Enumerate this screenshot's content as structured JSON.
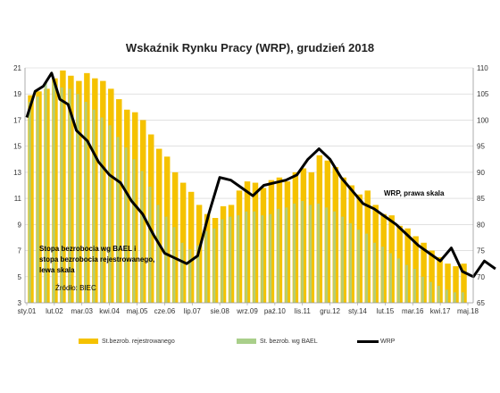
{
  "chart_data": {
    "type": "bar+line",
    "title": "Wskaźnik Rynku Pracy (WRP), grudzień 2018",
    "left_axis": {
      "range": [
        3,
        21
      ],
      "ticks": [
        3,
        5,
        7,
        9,
        11,
        13,
        15,
        17,
        19,
        21
      ]
    },
    "right_axis": {
      "range": [
        65,
        110
      ],
      "ticks": [
        65,
        70,
        75,
        80,
        85,
        90,
        95,
        100,
        105,
        110
      ]
    },
    "x_tick_labels": [
      "sty.01",
      "lut.02",
      "mar.03",
      "kwi.04",
      "maj.05",
      "cze.06",
      "lip.07",
      "sie.08",
      "wrz.09",
      "paź.10",
      "lis.11",
      "gru.12",
      "sty.14",
      "lut.15",
      "mar.16",
      "kwi.17",
      "maj.18"
    ],
    "grid": "horizontal",
    "series": [
      {
        "name": "St.bezrob. rejestrowanego",
        "type": "bar",
        "axis": "left",
        "color": "#F5C200",
        "values": [
          18.9,
          19.2,
          19.4,
          20.2,
          20.8,
          20.4,
          20.0,
          20.6,
          20.2,
          20.0,
          19.4,
          18.6,
          17.8,
          17.6,
          17.0,
          15.9,
          14.8,
          14.2,
          13.0,
          12.2,
          11.5,
          10.5,
          9.8,
          9.5,
          10.4,
          10.5,
          11.6,
          12.3,
          12.2,
          11.8,
          12.4,
          12.6,
          12.3,
          13.0,
          13.3,
          13.0,
          14.3,
          13.9,
          13.4,
          12.6,
          12.0,
          11.3,
          11.6,
          10.5,
          9.8,
          9.7,
          8.9,
          8.7,
          8.1,
          7.6,
          7.0,
          6.5,
          6.0,
          5.8,
          6.0
        ]
      },
      {
        "name": "St. bezrob. wg BAEL",
        "type": "bar",
        "axis": "left",
        "color": "#A9CF8A",
        "values": [
          18.4,
          18.8,
          19.9,
          20.2,
          19.5,
          19.4,
          19.0,
          18.4,
          17.8,
          17.2,
          16.6,
          15.7,
          14.9,
          14.0,
          13.1,
          11.9,
          10.5,
          9.6,
          8.8,
          7.6,
          7.1,
          7.4,
          8.5,
          8.7,
          9.4,
          9.6,
          9.7,
          10.0,
          10.0,
          9.7,
          9.8,
          10.2,
          10.3,
          10.6,
          10.8,
          10.5,
          10.6,
          10.3,
          10.0,
          9.6,
          9.1,
          8.6,
          8.3,
          7.6,
          7.3,
          6.8,
          6.4,
          5.9,
          5.6,
          5.0,
          4.6,
          4.3,
          4.0,
          3.8,
          3.8
        ]
      },
      {
        "name": "WRP",
        "type": "line",
        "axis": "right",
        "color": "#000000",
        "x": [
          0,
          0.3,
          0.6,
          0.9,
          1.2,
          1.5,
          1.8,
          2.2,
          2.6,
          3.0,
          3.4,
          3.8,
          4.2,
          4.6,
          5.0,
          5.4,
          5.8,
          6.2,
          6.6,
          7.0,
          7.4,
          7.8,
          8.2,
          8.6,
          9.0,
          9.4,
          9.8,
          10.2,
          10.6,
          11.0,
          11.4,
          11.8,
          12.2,
          12.6,
          13.0,
          13.4,
          13.8,
          14.2,
          14.6,
          15.0,
          15.4,
          15.8,
          16.2,
          16.6,
          17.0
        ],
        "values": [
          100.5,
          105.5,
          106.5,
          109.0,
          104.0,
          103.0,
          98.0,
          96.0,
          92.0,
          89.5,
          88.0,
          84.5,
          82.0,
          78.0,
          74.5,
          73.5,
          72.5,
          74.0,
          82.0,
          89.0,
          88.5,
          87.0,
          85.5,
          87.5,
          88.0,
          88.5,
          89.5,
          92.5,
          94.5,
          92.5,
          89.0,
          86.5,
          84.0,
          83.0,
          81.5,
          80.0,
          78.0,
          76.0,
          74.5,
          73.0,
          75.5,
          71.0,
          70.0,
          73.0,
          71.5
        ]
      }
    ],
    "annotations": [
      "WRP, prawa skala",
      "Stopa bezrobocia wg BAEL i",
      " stopa bezrobocia rejestrowanego,",
      "lewa skala",
      "Źródło: BIEC"
    ],
    "legend": {
      "position": "bottom",
      "entries": [
        "St.bezrob. rejestrowanego",
        "St. bezrob. wg BAEL",
        "WRP"
      ]
    }
  }
}
